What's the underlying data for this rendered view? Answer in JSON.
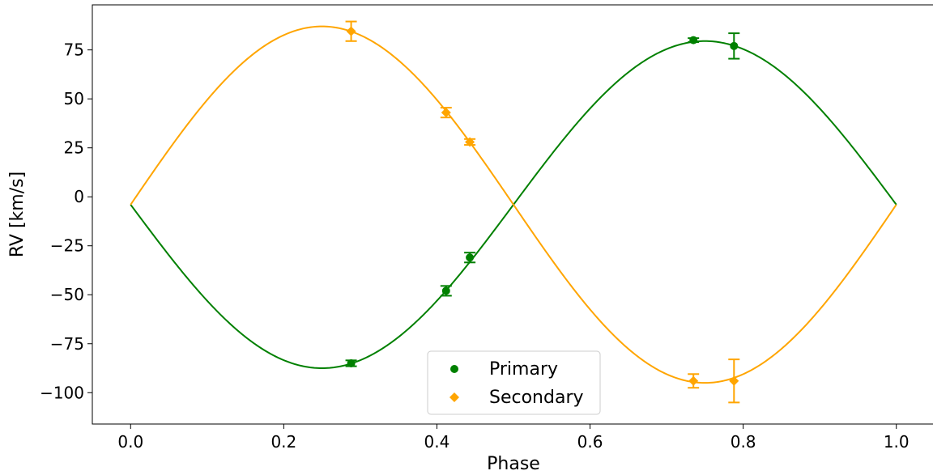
{
  "chart_data": {
    "type": "scatter",
    "xlabel": "Phase",
    "ylabel": "RV [km/s]",
    "xlim": [
      -0.05,
      1.05
    ],
    "ylim": [
      -116,
      98
    ],
    "xticks": [
      0.0,
      0.2,
      0.4,
      0.6,
      0.8,
      1.0
    ],
    "xtick_labels": [
      "0.0",
      "0.2",
      "0.4",
      "0.6",
      "0.8",
      "1.0"
    ],
    "yticks": [
      75,
      50,
      25,
      0,
      -25,
      -50,
      -75,
      -100
    ],
    "ytick_labels": [
      "75",
      "50",
      "25",
      "0",
      "−25",
      "−50",
      "−75",
      "−100"
    ],
    "grid": false,
    "legend_position": "bottom-center",
    "model": {
      "gamma": -4,
      "amplitude_primary": 83.5,
      "amplitude_secondary": 91
    },
    "series": [
      {
        "name": "Primary",
        "color": "#008000",
        "marker": "circle",
        "points": [
          {
            "x": 0.288,
            "y": -85,
            "err": 1.5
          },
          {
            "x": 0.412,
            "y": -48,
            "err": 2.5
          },
          {
            "x": 0.443,
            "y": -31,
            "err": 2.5
          },
          {
            "x": 0.735,
            "y": 80,
            "err": 1.0
          },
          {
            "x": 0.788,
            "y": 77,
            "err": 6.5
          }
        ]
      },
      {
        "name": "Secondary",
        "color": "#FFA500",
        "marker": "diamond",
        "points": [
          {
            "x": 0.288,
            "y": 84.5,
            "err": 5.0
          },
          {
            "x": 0.412,
            "y": 43,
            "err": 2.5
          },
          {
            "x": 0.443,
            "y": 28,
            "err": 1.5
          },
          {
            "x": 0.735,
            "y": -94,
            "err": 3.5
          },
          {
            "x": 0.788,
            "y": -94,
            "err": 11.0
          }
        ]
      }
    ]
  }
}
